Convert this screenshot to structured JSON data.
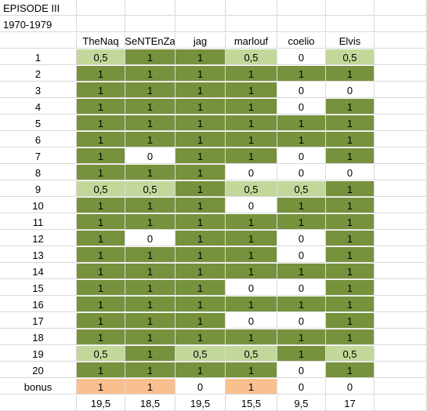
{
  "title": "EPISODE III",
  "subtitle": "1970-1979",
  "players": [
    "TheNaq",
    "SeNTEnZa",
    "jag",
    "marlouf",
    "coelio",
    "Elvis"
  ],
  "rows": [
    {
      "label": "1",
      "values": [
        "0,5",
        "1",
        "1",
        "0,5",
        "0",
        "0,5"
      ],
      "fills": [
        "l",
        "g",
        "g",
        "l",
        "w",
        "l"
      ]
    },
    {
      "label": "2",
      "values": [
        "1",
        "1",
        "1",
        "1",
        "1",
        "1"
      ],
      "fills": [
        "g",
        "g",
        "g",
        "g",
        "g",
        "g"
      ]
    },
    {
      "label": "3",
      "values": [
        "1",
        "1",
        "1",
        "1",
        "0",
        "0"
      ],
      "fills": [
        "g",
        "g",
        "g",
        "g",
        "w",
        "w"
      ]
    },
    {
      "label": "4",
      "values": [
        "1",
        "1",
        "1",
        "1",
        "0",
        "1"
      ],
      "fills": [
        "g",
        "g",
        "g",
        "g",
        "w",
        "g"
      ]
    },
    {
      "label": "5",
      "values": [
        "1",
        "1",
        "1",
        "1",
        "1",
        "1"
      ],
      "fills": [
        "g",
        "g",
        "g",
        "g",
        "g",
        "g"
      ]
    },
    {
      "label": "6",
      "values": [
        "1",
        "1",
        "1",
        "1",
        "1",
        "1"
      ],
      "fills": [
        "g",
        "g",
        "g",
        "g",
        "g",
        "g"
      ]
    },
    {
      "label": "7",
      "values": [
        "1",
        "0",
        "1",
        "1",
        "0",
        "1"
      ],
      "fills": [
        "g",
        "w",
        "g",
        "g",
        "w",
        "g"
      ]
    },
    {
      "label": "8",
      "values": [
        "1",
        "1",
        "1",
        "0",
        "0",
        "0"
      ],
      "fills": [
        "g",
        "g",
        "g",
        "w",
        "w",
        "w"
      ]
    },
    {
      "label": "9",
      "values": [
        "0,5",
        "0,5",
        "1",
        "0,5",
        "0,5",
        "1"
      ],
      "fills": [
        "l",
        "l",
        "g",
        "l",
        "l",
        "g"
      ]
    },
    {
      "label": "10",
      "values": [
        "1",
        "1",
        "1",
        "0",
        "1",
        "1"
      ],
      "fills": [
        "g",
        "g",
        "g",
        "w",
        "g",
        "g"
      ]
    },
    {
      "label": "11",
      "values": [
        "1",
        "1",
        "1",
        "1",
        "1",
        "1"
      ],
      "fills": [
        "g",
        "g",
        "g",
        "g",
        "g",
        "g"
      ]
    },
    {
      "label": "12",
      "values": [
        "1",
        "0",
        "1",
        "1",
        "0",
        "1"
      ],
      "fills": [
        "g",
        "w",
        "g",
        "g",
        "w",
        "g"
      ]
    },
    {
      "label": "13",
      "values": [
        "1",
        "1",
        "1",
        "1",
        "0",
        "1"
      ],
      "fills": [
        "g",
        "g",
        "g",
        "g",
        "w",
        "g"
      ]
    },
    {
      "label": "14",
      "values": [
        "1",
        "1",
        "1",
        "1",
        "1",
        "1"
      ],
      "fills": [
        "g",
        "g",
        "g",
        "g",
        "g",
        "g"
      ]
    },
    {
      "label": "15",
      "values": [
        "1",
        "1",
        "1",
        "0",
        "0",
        "1"
      ],
      "fills": [
        "g",
        "g",
        "g",
        "w",
        "w",
        "g"
      ]
    },
    {
      "label": "16",
      "values": [
        "1",
        "1",
        "1",
        "1",
        "1",
        "1"
      ],
      "fills": [
        "g",
        "g",
        "g",
        "g",
        "g",
        "g"
      ]
    },
    {
      "label": "17",
      "values": [
        "1",
        "1",
        "1",
        "0",
        "0",
        "1"
      ],
      "fills": [
        "g",
        "g",
        "g",
        "w",
        "w",
        "g"
      ]
    },
    {
      "label": "18",
      "values": [
        "1",
        "1",
        "1",
        "1",
        "1",
        "1"
      ],
      "fills": [
        "g",
        "g",
        "g",
        "g",
        "g",
        "g"
      ]
    },
    {
      "label": "19",
      "values": [
        "0,5",
        "1",
        "0,5",
        "0,5",
        "1",
        "0,5"
      ],
      "fills": [
        "l",
        "g",
        "l",
        "l",
        "g",
        "l"
      ]
    },
    {
      "label": "20",
      "values": [
        "1",
        "1",
        "1",
        "1",
        "0",
        "1"
      ],
      "fills": [
        "g",
        "g",
        "g",
        "g",
        "w",
        "g"
      ]
    },
    {
      "label": "bonus",
      "values": [
        "1",
        "1",
        "0",
        "1",
        "0",
        "0"
      ],
      "fills": [
        "o",
        "o",
        "w",
        "o",
        "w",
        "w"
      ]
    }
  ],
  "totals": [
    "19,5",
    "18,5",
    "19,5",
    "15,5",
    "9,5",
    "17"
  ],
  "colors": {
    "full": "#76923c",
    "half": "#c4d79b",
    "zero": "#ffffff",
    "bonus": "#fabf8f",
    "grid": "#d9d9d9"
  }
}
